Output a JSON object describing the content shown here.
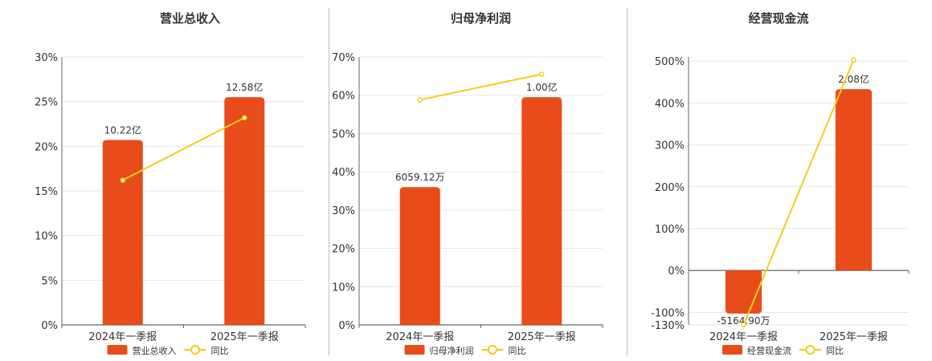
{
  "colors": {
    "bar": "#e84c1a",
    "line": "#f2cd1b",
    "grid": "#e6e6e6",
    "axis": "#666666"
  },
  "chart_data": [
    {
      "type": "bar",
      "title": "营业总收入",
      "categories": [
        "2024年一季报",
        "2025年一季报"
      ],
      "series": [
        {
          "name": "营业总收入",
          "type": "bar",
          "values": [
            10.22,
            12.58
          ],
          "labels": [
            "10.22亿",
            "12.58亿"
          ]
        },
        {
          "name": "同比",
          "type": "line",
          "values": [
            16.2,
            23.2
          ]
        }
      ],
      "ylim": [
        0,
        30
      ],
      "yticks": [
        0,
        5,
        10,
        15,
        20,
        25,
        30
      ],
      "ytick_labels": [
        "0%",
        "5%",
        "10%",
        "15%",
        "20%",
        "25%",
        "30%"
      ],
      "bar_pct": [
        20.7,
        25.5
      ],
      "grid": true,
      "legend": "bottom"
    },
    {
      "type": "bar",
      "title": "归母净利润",
      "categories": [
        "2024年一季报",
        "2025年一季报"
      ],
      "series": [
        {
          "name": "归母净利润",
          "type": "bar",
          "values": [
            0.6059,
            1.0
          ],
          "labels": [
            "6059.12万",
            "1.00亿"
          ]
        },
        {
          "name": "同比",
          "type": "line",
          "values": [
            58.8,
            65.5
          ]
        }
      ],
      "ylim": [
        0,
        70
      ],
      "yticks": [
        0,
        10,
        20,
        30,
        40,
        50,
        60,
        70
      ],
      "ytick_labels": [
        "0%",
        "10%",
        "20%",
        "30%",
        "40%",
        "50%",
        "60%",
        "70%"
      ],
      "bar_pct": [
        36.0,
        59.5
      ],
      "grid": true,
      "legend": "bottom"
    },
    {
      "type": "bar",
      "title": "经营现金流",
      "categories": [
        "2024年一季报",
        "2025年一季报"
      ],
      "series": [
        {
          "name": "经营现金流",
          "type": "bar",
          "values": [
            -0.5165,
            2.08
          ],
          "labels": [
            "-5164.90万",
            "2.08亿"
          ]
        },
        {
          "name": "同比",
          "type": "line",
          "values": [
            -130,
            503
          ]
        }
      ],
      "ylim": [
        -130,
        510
      ],
      "yticks": [
        -130,
        -100,
        0,
        100,
        200,
        300,
        400,
        500
      ],
      "ytick_labels": [
        "-130%",
        "-100%",
        "0%",
        "100%",
        "200%",
        "300%",
        "400%",
        "500%"
      ],
      "bar_pct": [
        -103,
        433
      ],
      "grid": true,
      "legend": "bottom"
    }
  ]
}
